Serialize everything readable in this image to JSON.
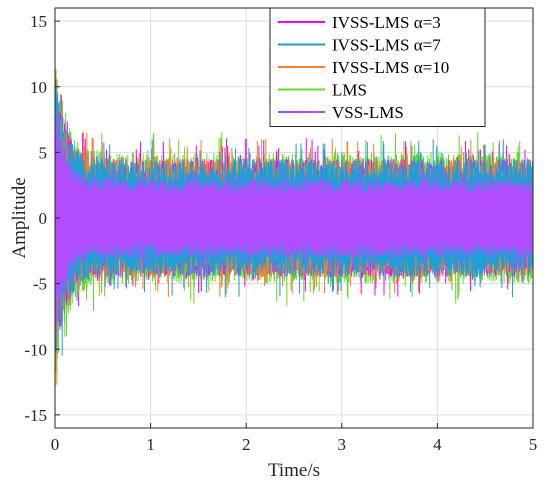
{
  "chart_data": {
    "type": "line",
    "title": "",
    "xlabel": "Time/s",
    "ylabel": "Amplitude",
    "xlim": [
      0,
      5
    ],
    "ylim": [
      -16,
      16
    ],
    "xticks": [
      "0",
      "1",
      "2",
      "3",
      "4",
      "5"
    ],
    "yticks": [
      "15",
      "10",
      "5",
      "0",
      "-5",
      "-10",
      "-15"
    ],
    "grid": true,
    "legend_position": "top-right",
    "series": [
      {
        "name": "IVSS-LMS α=3",
        "color": "#FF00FF",
        "initial_peak": 11,
        "steady_envelope": 4.5
      },
      {
        "name": "IVSS-LMS α=7",
        "color": "#1F9FD8",
        "initial_peak": 11,
        "steady_envelope": 4.5
      },
      {
        "name": "IVSS-LMS α=10",
        "color": "#FF7F27",
        "initial_peak": 11,
        "steady_envelope": 4.5
      },
      {
        "name": "LMS",
        "color": "#66D92B",
        "initial_peak": 13,
        "steady_envelope": 5.0
      },
      {
        "name": "VSS-LMS",
        "color": "#B14CFF",
        "initial_peak": 9,
        "steady_envelope": 3.0
      }
    ]
  }
}
